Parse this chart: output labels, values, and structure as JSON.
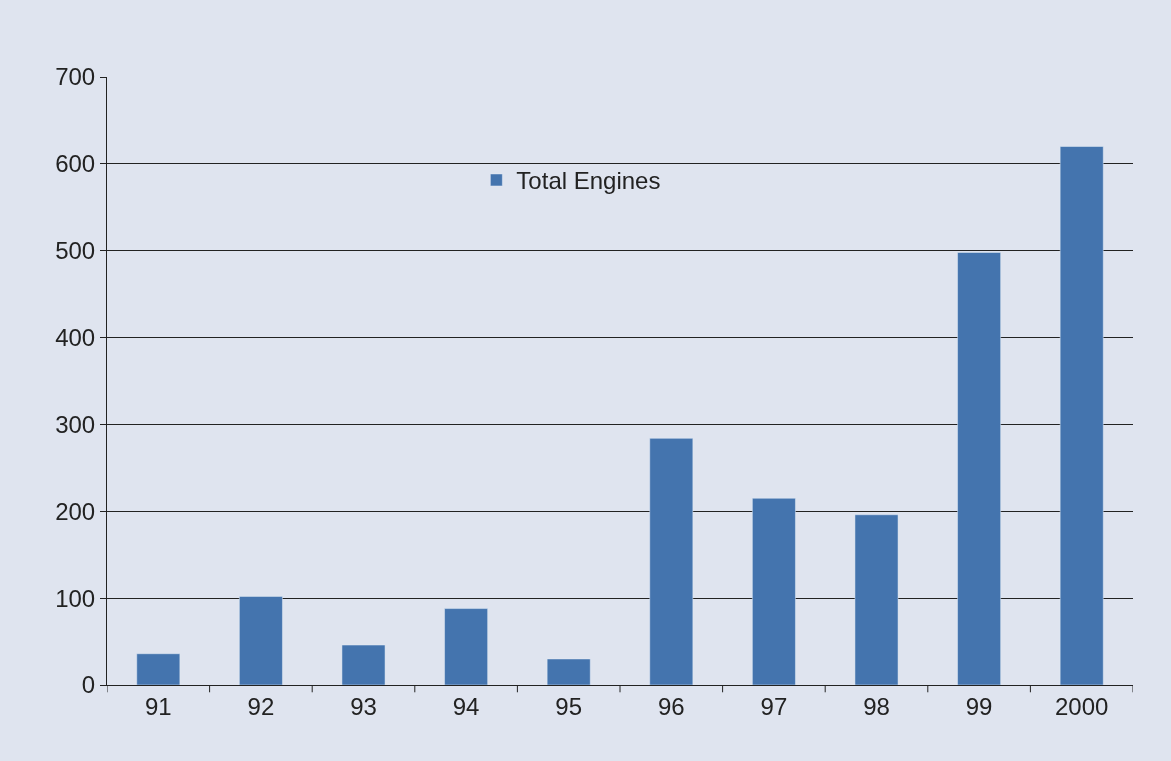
{
  "chart_data": {
    "type": "bar",
    "categories": [
      "91",
      "92",
      "93",
      "94",
      "95",
      "96",
      "97",
      "98",
      "99",
      "2000"
    ],
    "series": [
      {
        "name": "Total Engines",
        "color": "#4474ae",
        "values": [
          36,
          102,
          46,
          88,
          30,
          284,
          215,
          196,
          498,
          620
        ]
      }
    ],
    "ylim": [
      0,
      700
    ],
    "yticks": [
      0,
      100,
      200,
      300,
      400,
      500,
      600,
      700
    ],
    "grid": "y",
    "legend": "top"
  }
}
